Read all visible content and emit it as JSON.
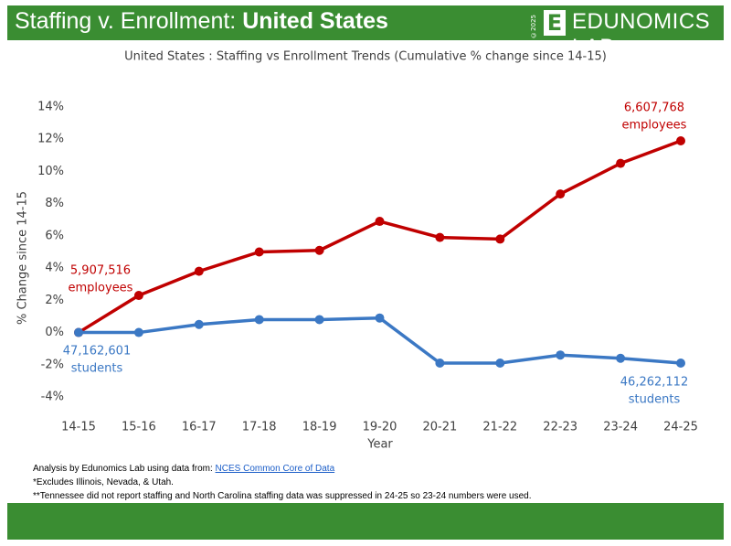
{
  "header": {
    "title": "Staffing v. Enrollment: ",
    "title_bold": "United States",
    "copyright": "©2025",
    "logo_letter": "E",
    "brand": "EDUNOMICS LAB"
  },
  "chart_data": {
    "type": "line",
    "title": "United States : Staffing vs Enrollment Trends (Cumulative % change since 14-15)",
    "x_label": "Year",
    "y_label": "% Change since 14-15",
    "categories": [
      "14-15",
      "15-16",
      "16-17",
      "17-18",
      "18-19",
      "19-20",
      "20-21",
      "21-22",
      "22-23",
      "23-24",
      "24-25"
    ],
    "series": [
      {
        "name": "Employees",
        "color": "#c00000",
        "values": [
          0,
          2.3,
          3.8,
          5.0,
          5.1,
          6.9,
          5.9,
          5.8,
          8.6,
          10.5,
          11.9
        ]
      },
      {
        "name": "Students",
        "color": "#3b78c4",
        "values": [
          0,
          0,
          0.5,
          0.8,
          0.8,
          0.9,
          -1.9,
          -1.9,
          -1.4,
          -1.6,
          -1.9
        ]
      }
    ],
    "ylim": [
      -4,
      14
    ],
    "yticks": [
      {
        "value": -4,
        "label": "-4%"
      },
      {
        "value": -2,
        "label": "-2%"
      },
      {
        "value": 0,
        "label": "0%"
      },
      {
        "value": 2,
        "label": "2%"
      },
      {
        "value": 4,
        "label": "4%"
      },
      {
        "value": 6,
        "label": "6%"
      },
      {
        "value": 8,
        "label": "8%"
      },
      {
        "value": 10,
        "label": "10%"
      },
      {
        "value": 12,
        "label": "12%"
      },
      {
        "value": 14,
        "label": "14%"
      }
    ],
    "annotations": [
      {
        "lines": [
          "5,907,516",
          "employees"
        ]
      },
      {
        "lines": [
          "6,607,768",
          "employees"
        ]
      },
      {
        "lines": [
          "47,162,601",
          "students"
        ]
      },
      {
        "lines": [
          "46,262,112",
          "students"
        ]
      }
    ]
  },
  "footer": {
    "source_prefix": "Analysis by Edunomics Lab using data from: ",
    "source_link": "NCES Common Core of Data",
    "notes": [
      "*Excludes Illinois, Nevada, & Utah.",
      "**Tennessee did not report staffing and North Carolina staffing data was suppressed in 24-25 so 23-24 numbers were used."
    ]
  }
}
